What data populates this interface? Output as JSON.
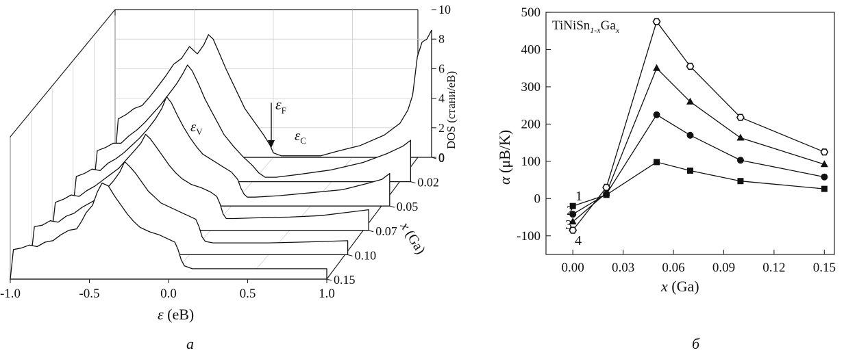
{
  "chart_data": [
    {
      "panel_label": "а",
      "type": "line",
      "style": "3d-waterfall",
      "x_axis": {
        "symbol": "ε",
        "unit": " (eB)",
        "ticks": [
          "-1.0",
          "-0.5",
          "0.0",
          "0.5",
          "1.0"
        ],
        "range": [
          -1.0,
          1.0
        ]
      },
      "z_axis": {
        "symbol": "x",
        "unit": " (Ga)",
        "ticks": [
          "0",
          "0.02",
          "0.05",
          "0.07",
          "0.10",
          "0.15"
        ]
      },
      "y_axis": {
        "label": "DOS (стани/еВ)",
        "ticks": [
          "0",
          "2",
          "4",
          "6",
          "8",
          "10"
        ],
        "range": [
          0,
          10
        ]
      },
      "annotations": {
        "valence": "ε",
        "valence_sub": "V",
        "fermi": "ε",
        "fermi_sub": "F",
        "conduction": "ε",
        "conduction_sub": "C"
      },
      "series": [
        {
          "x_ga": 0.15,
          "points": [
            [
              -1.0,
              0
            ],
            [
              -0.98,
              2.0
            ],
            [
              -0.93,
              2.1
            ],
            [
              -0.88,
              2.3
            ],
            [
              -0.83,
              2.2
            ],
            [
              -0.78,
              2.5
            ],
            [
              -0.73,
              2.6
            ],
            [
              -0.68,
              3.0
            ],
            [
              -0.63,
              3.3
            ],
            [
              -0.58,
              3.4
            ],
            [
              -0.55,
              3.9
            ],
            [
              -0.52,
              4.5
            ],
            [
              -0.48,
              5.0
            ],
            [
              -0.45,
              5.9
            ],
            [
              -0.42,
              6.5
            ],
            [
              -0.38,
              6.3
            ],
            [
              -0.34,
              5.6
            ],
            [
              -0.3,
              5.0
            ],
            [
              -0.26,
              4.4
            ],
            [
              -0.22,
              3.9
            ],
            [
              -0.18,
              3.5
            ],
            [
              -0.12,
              3.2
            ],
            [
              -0.06,
              3.0
            ],
            [
              0.0,
              2.7
            ],
            [
              0.04,
              2.5
            ],
            [
              0.06,
              2.0
            ],
            [
              0.08,
              1.3
            ],
            [
              0.1,
              0.9
            ],
            [
              0.15,
              0.7
            ],
            [
              0.3,
              0.7
            ],
            [
              0.5,
              0.7
            ],
            [
              0.7,
              0.7
            ],
            [
              0.85,
              0.7
            ],
            [
              1.0,
              0.7
            ],
            [
              1.0,
              0
            ]
          ]
        },
        {
          "x_ga": 0.1,
          "points": [
            [
              -1.0,
              0
            ],
            [
              -0.98,
              1.9
            ],
            [
              -0.93,
              2.0
            ],
            [
              -0.88,
              2.3
            ],
            [
              -0.83,
              2.2
            ],
            [
              -0.78,
              2.6
            ],
            [
              -0.73,
              2.8
            ],
            [
              -0.68,
              3.2
            ],
            [
              -0.63,
              3.5
            ],
            [
              -0.58,
              3.8
            ],
            [
              -0.53,
              4.4
            ],
            [
              -0.48,
              5.0
            ],
            [
              -0.44,
              5.6
            ],
            [
              -0.41,
              6.3
            ],
            [
              -0.38,
              6.0
            ],
            [
              -0.34,
              5.5
            ],
            [
              -0.3,
              4.9
            ],
            [
              -0.26,
              4.3
            ],
            [
              -0.22,
              3.9
            ],
            [
              -0.18,
              3.5
            ],
            [
              -0.12,
              3.2
            ],
            [
              -0.06,
              2.9
            ],
            [
              0.0,
              2.6
            ],
            [
              0.04,
              2.4
            ],
            [
              0.06,
              1.9
            ],
            [
              0.08,
              1.2
            ],
            [
              0.1,
              0.9
            ],
            [
              0.15,
              0.8
            ],
            [
              0.3,
              0.8
            ],
            [
              0.5,
              0.8
            ],
            [
              0.7,
              0.85
            ],
            [
              0.85,
              0.9
            ],
            [
              1.0,
              0.95
            ],
            [
              1.0,
              0
            ]
          ]
        },
        {
          "x_ga": 0.07,
          "points": [
            [
              -1.0,
              0
            ],
            [
              -0.98,
              1.9
            ],
            [
              -0.93,
              2.1
            ],
            [
              -0.88,
              2.4
            ],
            [
              -0.83,
              2.3
            ],
            [
              -0.78,
              2.7
            ],
            [
              -0.73,
              3.0
            ],
            [
              -0.68,
              3.4
            ],
            [
              -0.63,
              3.8
            ],
            [
              -0.58,
              4.2
            ],
            [
              -0.53,
              4.8
            ],
            [
              -0.48,
              5.4
            ],
            [
              -0.44,
              5.9
            ],
            [
              -0.41,
              6.5
            ],
            [
              -0.38,
              6.2
            ],
            [
              -0.34,
              5.6
            ],
            [
              -0.3,
              5.0
            ],
            [
              -0.26,
              4.4
            ],
            [
              -0.22,
              3.9
            ],
            [
              -0.18,
              3.5
            ],
            [
              -0.12,
              3.1
            ],
            [
              -0.06,
              2.9
            ],
            [
              0.0,
              2.6
            ],
            [
              0.04,
              2.3
            ],
            [
              0.06,
              1.8
            ],
            [
              0.08,
              1.1
            ],
            [
              0.1,
              0.8
            ],
            [
              0.15,
              0.8
            ],
            [
              0.3,
              0.85
            ],
            [
              0.5,
              0.9
            ],
            [
              0.7,
              1.0
            ],
            [
              0.85,
              1.2
            ],
            [
              1.0,
              1.4
            ],
            [
              1.0,
              0
            ]
          ]
        },
        {
          "x_ga": 0.05,
          "points": [
            [
              -1.0,
              0
            ],
            [
              -0.98,
              2.0
            ],
            [
              -0.93,
              2.2
            ],
            [
              -0.88,
              2.5
            ],
            [
              -0.83,
              2.4
            ],
            [
              -0.78,
              2.9
            ],
            [
              -0.73,
              3.2
            ],
            [
              -0.68,
              3.6
            ],
            [
              -0.63,
              4.1
            ],
            [
              -0.58,
              4.6
            ],
            [
              -0.53,
              5.2
            ],
            [
              -0.48,
              5.9
            ],
            [
              -0.44,
              6.6
            ],
            [
              -0.41,
              7.4
            ],
            [
              -0.38,
              7.0
            ],
            [
              -0.34,
              6.1
            ],
            [
              -0.3,
              5.3
            ],
            [
              -0.26,
              4.6
            ],
            [
              -0.22,
              4.0
            ],
            [
              -0.18,
              3.5
            ],
            [
              -0.12,
              3.1
            ],
            [
              -0.06,
              2.7
            ],
            [
              0.0,
              2.3
            ],
            [
              0.04,
              1.8
            ],
            [
              0.06,
              1.2
            ],
            [
              0.08,
              0.8
            ],
            [
              0.1,
              0.6
            ],
            [
              0.15,
              0.6
            ],
            [
              0.3,
              0.7
            ],
            [
              0.5,
              0.9
            ],
            [
              0.7,
              1.1
            ],
            [
              0.85,
              1.5
            ],
            [
              0.95,
              1.8
            ],
            [
              1.0,
              2.2
            ],
            [
              1.0,
              0
            ]
          ]
        },
        {
          "x_ga": 0.02,
          "points": [
            [
              -1.0,
              0
            ],
            [
              -0.98,
              2.1
            ],
            [
              -0.93,
              2.3
            ],
            [
              -0.88,
              2.6
            ],
            [
              -0.83,
              2.6
            ],
            [
              -0.78,
              3.1
            ],
            [
              -0.73,
              3.5
            ],
            [
              -0.68,
              4.0
            ],
            [
              -0.63,
              4.6
            ],
            [
              -0.58,
              5.2
            ],
            [
              -0.53,
              5.9
            ],
            [
              -0.48,
              6.6
            ],
            [
              -0.44,
              7.3
            ],
            [
              -0.41,
              7.9
            ],
            [
              -0.38,
              7.5
            ],
            [
              -0.34,
              6.6
            ],
            [
              -0.3,
              5.6
            ],
            [
              -0.26,
              4.8
            ],
            [
              -0.22,
              4.0
            ],
            [
              -0.18,
              3.2
            ],
            [
              -0.12,
              2.4
            ],
            [
              -0.06,
              1.7
            ],
            [
              0.0,
              1.1
            ],
            [
              0.04,
              0.6
            ],
            [
              0.08,
              0.3
            ],
            [
              0.15,
              0.3
            ],
            [
              0.3,
              0.5
            ],
            [
              0.5,
              0.8
            ],
            [
              0.7,
              1.3
            ],
            [
              0.85,
              1.9
            ],
            [
              0.95,
              2.4
            ],
            [
              1.0,
              2.8
            ],
            [
              1.0,
              0
            ]
          ]
        },
        {
          "x_ga": 0.0,
          "points": [
            [
              -1.0,
              0
            ],
            [
              -0.98,
              2.6
            ],
            [
              -0.93,
              2.9
            ],
            [
              -0.88,
              3.3
            ],
            [
              -0.83,
              3.5
            ],
            [
              -0.78,
              4.1
            ],
            [
              -0.73,
              4.8
            ],
            [
              -0.68,
              5.5
            ],
            [
              -0.63,
              6.3
            ],
            [
              -0.58,
              6.7
            ],
            [
              -0.53,
              7.5
            ],
            [
              -0.48,
              7.0
            ],
            [
              -0.44,
              7.6
            ],
            [
              -0.41,
              8.3
            ],
            [
              -0.38,
              8.0
            ],
            [
              -0.34,
              7.0
            ],
            [
              -0.3,
              6.0
            ],
            [
              -0.26,
              5.1
            ],
            [
              -0.22,
              4.2
            ],
            [
              -0.18,
              3.3
            ],
            [
              -0.12,
              2.4
            ],
            [
              -0.06,
              1.5
            ],
            [
              -0.02,
              0.8
            ],
            [
              0.0,
              0.3
            ],
            [
              0.05,
              0.1
            ],
            [
              0.3,
              0.1
            ],
            [
              0.4,
              0.4
            ],
            [
              0.55,
              0.8
            ],
            [
              0.7,
              1.5
            ],
            [
              0.8,
              2.3
            ],
            [
              0.85,
              3.2
            ],
            [
              0.88,
              4.2
            ],
            [
              0.91,
              6.8
            ],
            [
              0.94,
              7.8
            ],
            [
              0.97,
              8.0
            ],
            [
              1.0,
              8.6
            ],
            [
              1.0,
              0
            ]
          ]
        }
      ]
    },
    {
      "panel_label": "б",
      "type": "line",
      "title_base": "TiNiSn",
      "title_sub1": "1-x",
      "title_mid": "Ga",
      "title_sub2": "x",
      "xlabel_symbol": "x",
      "xlabel_unit": " (Ga)",
      "ylabel_symbol": "α",
      "ylabel_unit": " (μB/K)",
      "xlim": [
        -0.016,
        0.156
      ],
      "ylim": [
        -150,
        500
      ],
      "x_ticks": [
        "0.00",
        "0.03",
        "0.06",
        "0.09",
        "0.12",
        "0.15"
      ],
      "y_ticks": [
        "-100",
        "0",
        "100",
        "200",
        "300",
        "400",
        "500"
      ],
      "x": [
        0.0,
        0.02,
        0.05,
        0.07,
        0.1,
        0.15
      ],
      "series": [
        {
          "label": "1",
          "marker": "square",
          "values": [
            -20,
            10,
            98,
            75,
            47,
            26
          ]
        },
        {
          "label": "2",
          "marker": "circle",
          "values": [
            -42,
            12,
            225,
            170,
            103,
            58
          ]
        },
        {
          "label": "3",
          "marker": "triangle",
          "values": [
            -62,
            15,
            350,
            260,
            163,
            92
          ]
        },
        {
          "label": "4",
          "marker": "hexagon",
          "values": [
            -85,
            30,
            475,
            355,
            218,
            125
          ]
        }
      ]
    }
  ]
}
